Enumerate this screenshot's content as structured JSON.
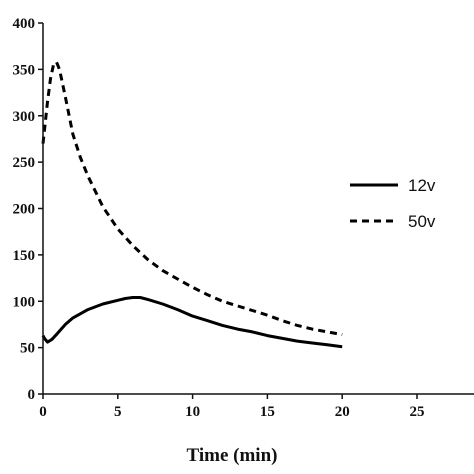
{
  "chart_data": {
    "type": "line",
    "title": "",
    "xlabel": "Time (min)",
    "ylabel": "",
    "xlim": [
      0,
      25
    ],
    "ylim": [
      0,
      400
    ],
    "xticks": [
      "0",
      "5",
      "10",
      "15",
      "20",
      "25"
    ],
    "yticks": [
      "0",
      "50",
      "100",
      "150",
      "200",
      "250",
      "300",
      "350",
      "400"
    ],
    "grid": false,
    "legend_position": "right",
    "series": [
      {
        "name": "12v",
        "style": "solid",
        "color": "#000000",
        "x": [
          0,
          0.1,
          0.3,
          0.6,
          1,
          1.5,
          2,
          3,
          4,
          5,
          5.5,
          6,
          6.5,
          7,
          8,
          9,
          10,
          11,
          12,
          13,
          14,
          15,
          16,
          17,
          18,
          19,
          20
        ],
        "y": [
          63,
          60,
          56,
          59,
          66,
          75,
          82,
          91,
          97,
          101,
          103,
          104,
          104,
          102,
          97,
          91,
          84,
          79,
          74,
          70,
          67,
          63,
          60,
          57,
          55,
          53,
          51
        ]
      },
      {
        "name": "50v",
        "style": "dashed",
        "color": "#000000",
        "x": [
          0,
          0.1,
          0.3,
          0.5,
          0.7,
          0.9,
          1.1,
          1.5,
          2,
          2.5,
          3,
          4,
          5,
          6,
          7,
          8,
          9,
          10,
          11,
          12,
          13,
          14,
          15,
          16,
          17,
          18,
          19,
          20
        ],
        "y": [
          270,
          285,
          315,
          340,
          355,
          358,
          350,
          320,
          280,
          255,
          235,
          202,
          178,
          160,
          145,
          133,
          124,
          115,
          107,
          100,
          95,
          90,
          85,
          79,
          74,
          70,
          67,
          64
        ]
      }
    ]
  }
}
